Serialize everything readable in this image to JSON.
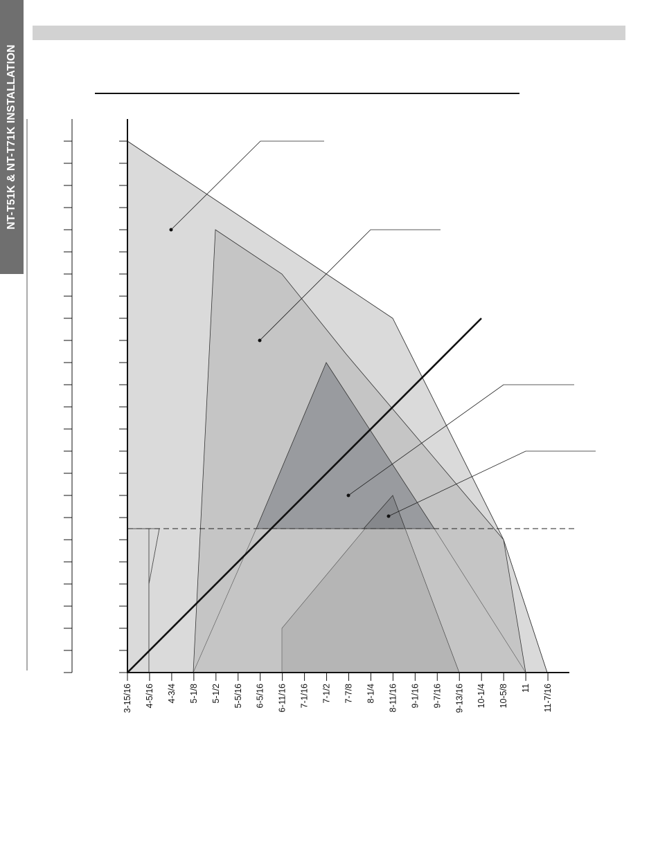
{
  "side_tab": {
    "label": "NT-T51K & NT-T71K INSTALLATION"
  },
  "x_axis": {
    "tick_labels": [
      "3-15/16",
      "4-5/16",
      "4-3/4",
      "5-1/8",
      "5-1/2",
      "5-5/16",
      "6-5/16",
      "6-11/16",
      "7-1/16",
      "7-1/2",
      "7-7/8",
      "8-1/4",
      "8-11/16",
      "9-1/16",
      "9-7/16",
      "9-13/16",
      "10-1/4",
      "10-5/8",
      "11",
      "11-7/16"
    ]
  },
  "y_axis": {
    "tick_count": 24
  },
  "colors": {
    "side_tab": "#6f6f6f",
    "header_bar": "#d2d2d2",
    "lightest_fill": "#e8e8e8",
    "light_fill": "#dadada",
    "medium_fill": "#c5c5c5",
    "bottom_fill": "#b5b5b5",
    "dark_fill": "#999b9f",
    "darkest_fill": "#86888c"
  }
}
